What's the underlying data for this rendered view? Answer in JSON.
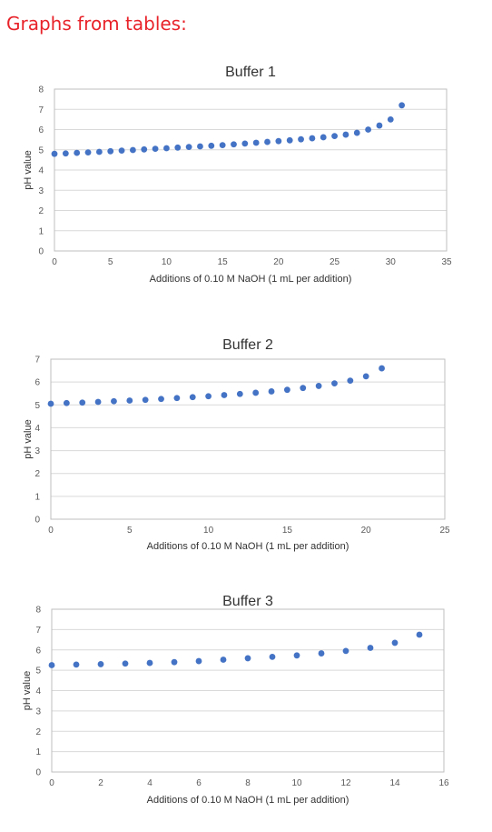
{
  "page": {
    "heading": "Graphs from tables:"
  },
  "colors": {
    "heading": "#e8232a",
    "series": "#4472c4",
    "grid": "#d9d9d9"
  },
  "chart_data": [
    {
      "type": "scatter",
      "title": "Buffer 1",
      "xlabel": "Additions of 0.10 M NaOH (1 mL per addition)",
      "ylabel": "pH value",
      "xlim": [
        0,
        35
      ],
      "ylim": [
        0,
        8
      ],
      "xticks": [
        0,
        5,
        10,
        15,
        20,
        25,
        30,
        35
      ],
      "yticks": [
        0,
        1,
        2,
        3,
        4,
        5,
        6,
        7,
        8
      ],
      "grid": true,
      "x": [
        0,
        1,
        2,
        3,
        4,
        5,
        6,
        7,
        8,
        9,
        10,
        11,
        12,
        13,
        14,
        15,
        16,
        17,
        18,
        19,
        20,
        21,
        22,
        23,
        24,
        25,
        26,
        27,
        28,
        29,
        30,
        31
      ],
      "y": [
        4.8,
        4.82,
        4.85,
        4.87,
        4.9,
        4.93,
        4.96,
        4.99,
        5.02,
        5.05,
        5.08,
        5.11,
        5.14,
        5.17,
        5.2,
        5.23,
        5.27,
        5.31,
        5.35,
        5.39,
        5.43,
        5.47,
        5.52,
        5.57,
        5.62,
        5.68,
        5.75,
        5.84,
        6.0,
        6.2,
        6.5,
        7.2
      ]
    },
    {
      "type": "scatter",
      "title": "Buffer 2",
      "xlabel": "Additions of 0.10 M NaOH (1 mL per addition)",
      "ylabel": "pH value",
      "xlim": [
        0,
        25
      ],
      "ylim": [
        0,
        7
      ],
      "xticks": [
        0,
        5,
        10,
        15,
        20,
        25
      ],
      "yticks": [
        0,
        1,
        2,
        3,
        4,
        5,
        6,
        7
      ],
      "grid": true,
      "x": [
        0,
        1,
        2,
        3,
        4,
        5,
        6,
        7,
        8,
        9,
        10,
        11,
        12,
        13,
        14,
        15,
        16,
        17,
        18,
        19,
        20,
        21
      ],
      "y": [
        5.05,
        5.08,
        5.1,
        5.13,
        5.16,
        5.19,
        5.22,
        5.26,
        5.3,
        5.34,
        5.38,
        5.43,
        5.48,
        5.53,
        5.59,
        5.66,
        5.74,
        5.83,
        5.94,
        6.06,
        6.25,
        6.6
      ]
    },
    {
      "type": "scatter",
      "title": "Buffer 3",
      "xlabel": "Additions of 0.10 M NaOH (1 mL per addition)",
      "ylabel": "pH value",
      "xlim": [
        0,
        16
      ],
      "ylim": [
        0,
        8
      ],
      "xticks": [
        0,
        2,
        4,
        6,
        8,
        10,
        12,
        14,
        16
      ],
      "yticks": [
        0,
        1,
        2,
        3,
        4,
        5,
        6,
        7,
        8
      ],
      "grid": true,
      "x": [
        0,
        1,
        2,
        3,
        4,
        5,
        6,
        7,
        8,
        9,
        10,
        11,
        12,
        13,
        14,
        15
      ],
      "y": [
        5.25,
        5.28,
        5.3,
        5.33,
        5.36,
        5.4,
        5.45,
        5.52,
        5.59,
        5.66,
        5.73,
        5.83,
        5.95,
        6.1,
        6.35,
        6.75
      ]
    }
  ]
}
